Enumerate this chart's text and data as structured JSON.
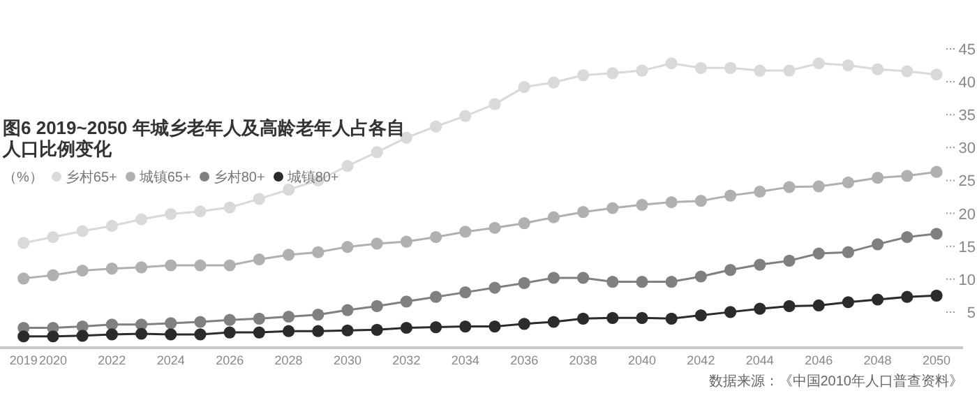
{
  "chart_data": {
    "type": "line",
    "title": "图6  2019~2050 年城乡老年人及高龄老年人占各自人口比例变化",
    "ylabel": "（%）",
    "legend": "top left",
    "marker": "circle",
    "line_style": "solid",
    "grid": false,
    "x": [
      2019,
      2020,
      2021,
      2022,
      2023,
      2024,
      2025,
      2026,
      2027,
      2028,
      2029,
      2030,
      2031,
      2032,
      2033,
      2034,
      2035,
      2036,
      2037,
      2038,
      2039,
      2040,
      2041,
      2042,
      2043,
      2044,
      2045,
      2046,
      2047,
      2048,
      2049,
      2050
    ],
    "xlim": [
      2018.2,
      2050.9
    ],
    "xticks": [
      2019,
      2020,
      2022,
      2024,
      2026,
      2028,
      2030,
      2032,
      2034,
      2036,
      2038,
      2040,
      2042,
      2044,
      2046,
      2048,
      2050
    ],
    "ylim": [
      0,
      45
    ],
    "yticks": [
      5,
      10,
      15,
      20,
      25,
      30,
      35,
      40,
      45
    ],
    "series": [
      {
        "name": "乡村65+",
        "color": "#d9d9d9",
        "values": [
          15.5,
          16.4,
          17.3,
          18.1,
          19.1,
          19.9,
          20.3,
          20.9,
          22.2,
          23.6,
          25.0,
          27.2,
          29.3,
          31.5,
          33.2,
          34.8,
          36.6,
          39.2,
          39.9,
          41.0,
          41.3,
          41.7,
          42.8,
          42.1,
          42.1,
          41.7,
          41.7,
          42.8,
          42.5,
          41.9,
          41.6,
          41.1
        ]
      },
      {
        "name": "城镇65+",
        "color": "#b0b0b0",
        "values": [
          10.1,
          10.6,
          11.3,
          11.6,
          11.8,
          12.1,
          12.1,
          12.1,
          13.0,
          13.7,
          14.1,
          14.9,
          15.4,
          15.7,
          16.4,
          17.2,
          17.8,
          18.5,
          19.4,
          20.2,
          20.8,
          21.3,
          21.7,
          21.9,
          22.7,
          23.3,
          24.0,
          24.1,
          24.7,
          25.4,
          25.7,
          26.3
        ]
      },
      {
        "name": "乡村80+",
        "color": "#808080",
        "values": [
          2.6,
          2.6,
          2.8,
          3.1,
          3.1,
          3.3,
          3.5,
          3.8,
          4.0,
          4.3,
          4.6,
          5.3,
          5.9,
          6.6,
          7.3,
          8.0,
          8.7,
          9.4,
          10.2,
          10.2,
          9.6,
          9.6,
          9.6,
          10.4,
          11.4,
          12.2,
          12.8,
          13.9,
          14.1,
          15.3,
          16.4,
          16.9
        ]
      },
      {
        "name": "城镇80+",
        "color": "#2b2b2b",
        "values": [
          1.3,
          1.3,
          1.4,
          1.6,
          1.7,
          1.6,
          1.6,
          1.9,
          1.9,
          2.1,
          2.1,
          2.2,
          2.3,
          2.6,
          2.7,
          2.8,
          2.8,
          3.2,
          3.5,
          4.0,
          4.1,
          4.1,
          4.0,
          4.5,
          5.0,
          5.5,
          5.9,
          6.0,
          6.5,
          6.9,
          7.3,
          7.5
        ]
      }
    ],
    "annotations": [
      "数据来源：《中国2010年人口普查资料》"
    ]
  }
}
